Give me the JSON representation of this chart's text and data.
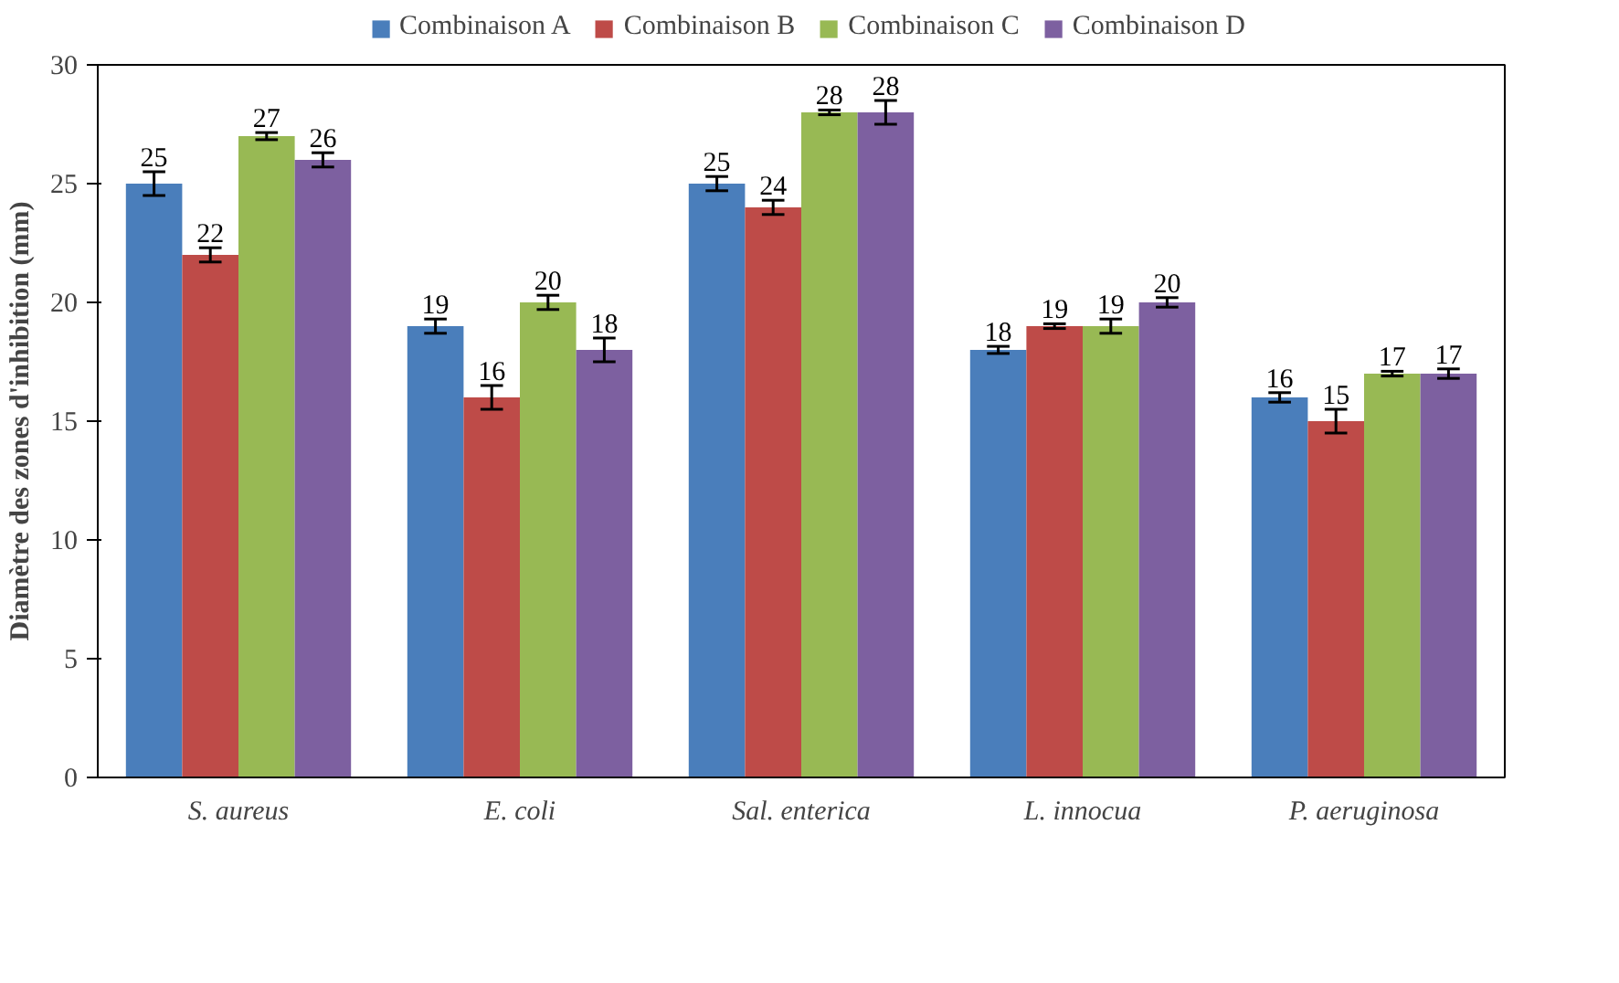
{
  "chart_data": {
    "type": "bar",
    "ylabel": "Diamètre des zones d'inhibition (mm)",
    "categories": [
      "S. aureus",
      "E. coli",
      "Sal. enterica",
      "L. innocua",
      "P. aeruginosa"
    ],
    "series": [
      {
        "name": "Combinaison A",
        "color": "#4a7ebb",
        "values": [
          25,
          19,
          25,
          18,
          16
        ],
        "errors": [
          0.5,
          0.3,
          0.3,
          0.15,
          0.2
        ]
      },
      {
        "name": "Combinaison B",
        "color": "#be4b48",
        "values": [
          22,
          16,
          24,
          19,
          15
        ],
        "errors": [
          0.3,
          0.5,
          0.3,
          0.1,
          0.5
        ]
      },
      {
        "name": "Combinaison C",
        "color": "#98b954",
        "values": [
          27,
          20,
          28,
          19,
          17
        ],
        "errors": [
          0.15,
          0.3,
          0.1,
          0.3,
          0.1
        ]
      },
      {
        "name": "Combinaison D",
        "color": "#7d60a0",
        "values": [
          26,
          18,
          28,
          20,
          17
        ],
        "errors": [
          0.3,
          0.5,
          0.5,
          0.2,
          0.2
        ]
      }
    ],
    "ylim": [
      0,
      30
    ],
    "yticks": [
      0,
      5,
      10,
      15,
      20,
      25,
      30
    ],
    "grid": false,
    "legend": "top",
    "data_labels": true
  }
}
